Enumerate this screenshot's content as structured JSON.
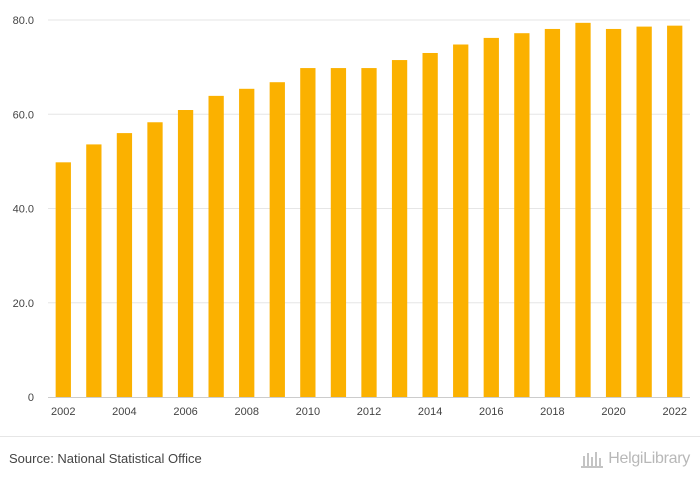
{
  "chart_data": {
    "type": "bar",
    "categories": [
      "2002",
      "2003",
      "2004",
      "2005",
      "2006",
      "2007",
      "2008",
      "2009",
      "2010",
      "2011",
      "2012",
      "2013",
      "2014",
      "2015",
      "2016",
      "2017",
      "2018",
      "2019",
      "2020",
      "2021",
      "2022"
    ],
    "values": [
      49.8,
      53.6,
      56.0,
      58.3,
      60.9,
      63.9,
      65.4,
      66.8,
      69.8,
      69.8,
      69.8,
      71.5,
      73.0,
      74.8,
      76.2,
      77.2,
      78.1,
      79.4,
      78.1,
      78.6,
      78.8
    ],
    "x_tick_labels": [
      "2002",
      "2004",
      "2006",
      "2008",
      "2010",
      "2012",
      "2014",
      "2016",
      "2018",
      "2020",
      "2022"
    ],
    "y_ticks": [
      {
        "value": 0,
        "label": "0"
      },
      {
        "value": 20,
        "label": "20.0"
      },
      {
        "value": 40,
        "label": "40.0"
      },
      {
        "value": 60,
        "label": "60.0"
      },
      {
        "value": 80,
        "label": "80.0"
      }
    ],
    "ylim": [
      0,
      80
    ],
    "title": "",
    "xlabel": "",
    "ylabel": "",
    "grid": true,
    "legend": "none",
    "bar_color": "#FBB100"
  },
  "footer": {
    "source": "Source: National Statistical Office",
    "brand": "HelgiLibrary"
  },
  "colors": {
    "bar": "#FBB100",
    "grid": "#e6e6e6",
    "text": "#444444",
    "brand": "#b8b8b8"
  },
  "icons": {
    "brand": "library-icon"
  }
}
